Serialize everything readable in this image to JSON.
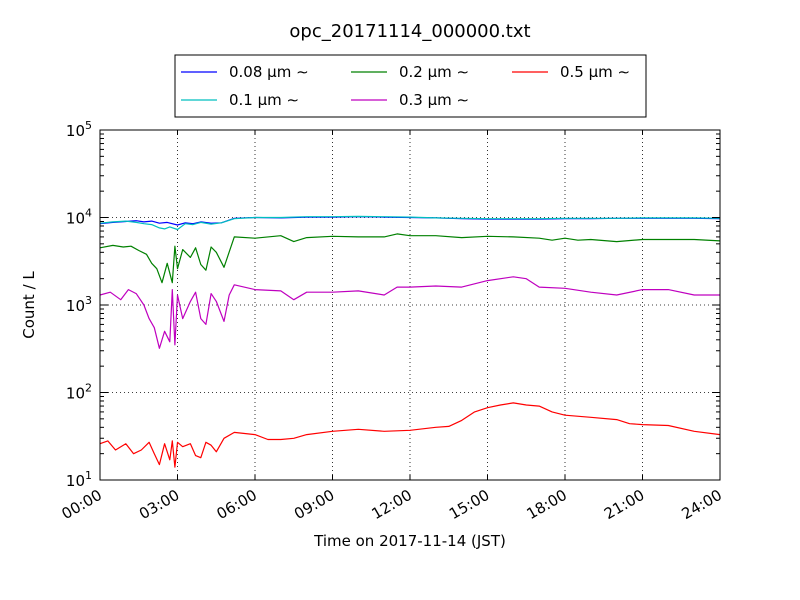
{
  "chart_data": {
    "type": "line",
    "title": "opc_20171114_000000.txt",
    "xlabel": "Time on 2017-11-14 (JST)",
    "ylabel": "Count / L",
    "x_ticks": [
      "00:00",
      "03:00",
      "06:00",
      "09:00",
      "12:00",
      "15:00",
      "18:00",
      "21:00",
      "24:00"
    ],
    "y_ticks": [
      {
        "value": 10,
        "base": "10",
        "exp": "1"
      },
      {
        "value": 100,
        "base": "10",
        "exp": "2"
      },
      {
        "value": 1000,
        "base": "10",
        "exp": "3"
      },
      {
        "value": 10000,
        "base": "10",
        "exp": "4"
      },
      {
        "value": 100000,
        "base": "10",
        "exp": "5"
      }
    ],
    "xlim_hours": [
      0,
      24
    ],
    "ylim": [
      10,
      100000
    ],
    "yscale": "log",
    "grid": true,
    "legend_position": "top-center",
    "series": [
      {
        "name": "0.08 μm ∼",
        "color": "#0000ff",
        "x": [
          0,
          0.5,
          1,
          1.4,
          1.7,
          2.0,
          2.3,
          2.6,
          3.0,
          3.3,
          3.6,
          3.9,
          4.3,
          4.7,
          5.2,
          6,
          7,
          8,
          9,
          10,
          11,
          12,
          13,
          14,
          15,
          16,
          17,
          18,
          19,
          20,
          21,
          22,
          23,
          24
        ],
        "y": [
          8500,
          8800,
          9000,
          9200,
          8900,
          9100,
          8600,
          8800,
          8200,
          8700,
          8500,
          8900,
          8600,
          8700,
          9800,
          10000,
          9900,
          10100,
          10100,
          10200,
          10100,
          10000,
          9900,
          9700,
          9600,
          9600,
          9600,
          9700,
          9700,
          9800,
          9800,
          9800,
          9800,
          9700
        ]
      },
      {
        "name": "0.1 μm ∼",
        "color": "#00bfbf",
        "x": [
          0,
          0.5,
          1,
          1.4,
          1.7,
          2.0,
          2.3,
          2.5,
          2.7,
          3.0,
          3.3,
          3.6,
          3.9,
          4.3,
          4.7,
          5.2,
          6,
          7,
          8,
          9,
          10,
          11,
          12,
          13,
          14,
          15,
          16,
          17,
          18,
          19,
          20,
          21,
          22,
          23,
          24
        ],
        "y": [
          8600,
          8900,
          9100,
          8800,
          8500,
          8300,
          7600,
          7400,
          7800,
          7300,
          8500,
          8300,
          8800,
          8400,
          8700,
          9700,
          10000,
          10000,
          10200,
          10200,
          10300,
          10200,
          10100,
          9900,
          9800,
          9700,
          9700,
          9700,
          9800,
          9800,
          9800,
          9900,
          9900,
          9900,
          9800
        ]
      },
      {
        "name": "0.2 μm ∼",
        "color": "#008000",
        "x": [
          0,
          0.5,
          0.9,
          1.2,
          1.5,
          1.8,
          2.0,
          2.2,
          2.4,
          2.6,
          2.8,
          2.9,
          3.0,
          3.2,
          3.5,
          3.7,
          3.9,
          4.1,
          4.3,
          4.5,
          4.8,
          5.2,
          6,
          7,
          7.5,
          8,
          9,
          10,
          11,
          11.5,
          12,
          13,
          14,
          15,
          16,
          17,
          17.5,
          18,
          18.5,
          19,
          20,
          21,
          22,
          23,
          24
        ],
        "y": [
          4500,
          4800,
          4600,
          4700,
          4200,
          3800,
          3000,
          2600,
          1800,
          3000,
          1800,
          4700,
          2600,
          4300,
          3500,
          4500,
          2900,
          2500,
          4600,
          4000,
          2700,
          6000,
          5800,
          6200,
          5300,
          5900,
          6100,
          6000,
          6000,
          6500,
          6200,
          6200,
          5900,
          6100,
          6000,
          5800,
          5500,
          5800,
          5500,
          5600,
          5300,
          5600,
          5600,
          5600,
          5400
        ]
      },
      {
        "name": "0.3 μm ∼",
        "color": "#bf00bf",
        "x": [
          0,
          0.4,
          0.8,
          1.1,
          1.4,
          1.7,
          1.9,
          2.1,
          2.3,
          2.5,
          2.7,
          2.8,
          2.9,
          3.0,
          3.2,
          3.5,
          3.7,
          3.9,
          4.1,
          4.3,
          4.5,
          4.8,
          5.0,
          5.2,
          6,
          7,
          7.5,
          8,
          9,
          10,
          11,
          11.5,
          12,
          13,
          14,
          15,
          16,
          16.5,
          17,
          18,
          19,
          20,
          21,
          22,
          23,
          24
        ],
        "y": [
          1300,
          1400,
          1150,
          1500,
          1350,
          1000,
          700,
          550,
          320,
          500,
          380,
          1500,
          350,
          1300,
          700,
          1100,
          1400,
          700,
          600,
          1350,
          1100,
          650,
          1300,
          1700,
          1500,
          1450,
          1150,
          1400,
          1400,
          1450,
          1300,
          1600,
          1600,
          1650,
          1600,
          1900,
          2100,
          2000,
          1600,
          1550,
          1400,
          1300,
          1500,
          1500,
          1300,
          1300
        ]
      },
      {
        "name": "0.5 μm ∼",
        "color": "#ff0000",
        "x": [
          0,
          0.3,
          0.6,
          1.0,
          1.3,
          1.6,
          1.9,
          2.1,
          2.3,
          2.5,
          2.7,
          2.8,
          2.9,
          3.0,
          3.2,
          3.5,
          3.7,
          3.9,
          4.1,
          4.3,
          4.5,
          4.8,
          5.2,
          6,
          6.5,
          7,
          7.5,
          8,
          9,
          10,
          11,
          12,
          13,
          13.5,
          14,
          14.5,
          15,
          15.5,
          16,
          16.5,
          17,
          17.5,
          18,
          19,
          20,
          20.5,
          21,
          22,
          23,
          24
        ],
        "y": [
          26,
          28,
          22,
          26,
          20,
          22,
          27,
          20,
          15,
          26,
          17,
          28,
          14,
          27,
          24,
          26,
          19,
          18,
          27,
          25,
          21,
          30,
          35,
          33,
          29,
          29,
          30,
          33,
          36,
          38,
          36,
          37,
          40,
          41,
          48,
          60,
          67,
          72,
          76,
          72,
          70,
          60,
          55,
          52,
          49,
          44,
          43,
          42,
          36,
          33
        ]
      }
    ]
  }
}
